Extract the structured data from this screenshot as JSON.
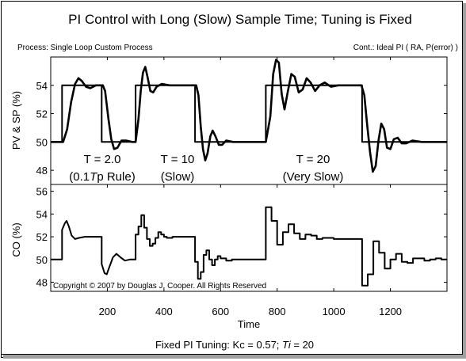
{
  "title": "PI Control with Long (Slow) Sample Time; Tuning is Fixed",
  "process_label": "Process: Single Loop Custom Process",
  "controller_label": "Cont.: Ideal PI ( RA, P(error) )",
  "copyright": "Copyright © 2007 by Douglas J. Cooper.  All Rights Reserved",
  "footer": {
    "prefix": "Fixed PI Tuning:    Kc = 0.57;  ",
    "ti_symbol": "Ti",
    "suffix": " = 20"
  },
  "annotations": [
    {
      "line1": "T = 2.0",
      "line2_pre": "(0.1",
      "line2_ital": "T",
      "line2_post": "p Rule)"
    },
    {
      "line1": "T = 10",
      "line2_pre": "(Slow)",
      "line2_ital": "",
      "line2_post": ""
    },
    {
      "line1": "T = 20",
      "line2_pre": "(Very Slow)",
      "line2_ital": "",
      "line2_post": ""
    }
  ],
  "chart_data": [
    {
      "type": "line",
      "ylabel": "PV & SP (%)",
      "ylim": [
        47,
        56
      ],
      "yticks": [
        48,
        50,
        52,
        54
      ],
      "xlim": [
        0,
        1400
      ],
      "grid": false,
      "series": [
        {
          "points": [
            [
              0,
              50
            ],
            [
              44,
              50
            ],
            [
              58,
              50.9
            ],
            [
              72,
              52.8
            ],
            [
              86,
              54.1
            ],
            [
              98,
              54.5
            ],
            [
              110,
              54.3
            ],
            [
              125,
              53.9
            ],
            [
              140,
              53.8
            ],
            [
              160,
              54
            ],
            [
              184,
              54
            ],
            [
              192,
              53.6
            ],
            [
              204,
              51.6
            ],
            [
              214,
              50.2
            ],
            [
              224,
              49.5
            ],
            [
              236,
              49.6
            ],
            [
              250,
              50.1
            ],
            [
              266,
              50.1
            ],
            [
              288,
              50
            ],
            [
              300,
              50
            ],
            [
              310,
              51.6
            ],
            [
              318,
              53.6
            ],
            [
              326,
              54.9
            ],
            [
              334,
              55.3
            ],
            [
              342,
              54.6
            ],
            [
              352,
              53.6
            ],
            [
              362,
              53.5
            ],
            [
              374,
              53.9
            ],
            [
              392,
              54.1
            ],
            [
              420,
              54
            ],
            [
              470,
              54
            ],
            [
              504,
              54
            ],
            [
              514,
              54
            ],
            [
              522,
              53.3
            ],
            [
              530,
              51.1
            ],
            [
              538,
              49.5
            ],
            [
              546,
              48.7
            ],
            [
              554,
              49.2
            ],
            [
              564,
              50.4
            ],
            [
              572,
              50.8
            ],
            [
              582,
              50.4
            ],
            [
              594,
              49.8
            ],
            [
              606,
              49.8
            ],
            [
              620,
              50.1
            ],
            [
              644,
              50
            ],
            [
              690,
              50
            ],
            [
              760,
              50
            ],
            [
              776,
              51.8
            ],
            [
              786,
              54.8
            ],
            [
              796,
              55.8
            ],
            [
              806,
              55.6
            ],
            [
              816,
              53.4
            ],
            [
              826,
              52.3
            ],
            [
              838,
              53.6
            ],
            [
              850,
              54.8
            ],
            [
              862,
              54.6
            ],
            [
              876,
              53.5
            ],
            [
              890,
              53.7
            ],
            [
              904,
              54.5
            ],
            [
              918,
              54.2
            ],
            [
              934,
              53.6
            ],
            [
              950,
              54
            ],
            [
              968,
              54.2
            ],
            [
              990,
              53.9
            ],
            [
              1016,
              54
            ],
            [
              1098,
              54
            ],
            [
              1108,
              53.3
            ],
            [
              1118,
              51.2
            ],
            [
              1128,
              49.3
            ],
            [
              1138,
              47.9
            ],
            [
              1148,
              48.3
            ],
            [
              1158,
              50.1
            ],
            [
              1168,
              51.3
            ],
            [
              1178,
              50.9
            ],
            [
              1188,
              49.6
            ],
            [
              1200,
              49.5
            ],
            [
              1212,
              50.2
            ],
            [
              1226,
              50.3
            ],
            [
              1240,
              49.9
            ],
            [
              1256,
              49.9
            ],
            [
              1278,
              50.1
            ],
            [
              1310,
              50
            ],
            [
              1400,
              50
            ]
          ]
        },
        {
          "points": [
            [
              0,
              50
            ],
            [
              40,
              50
            ],
            [
              40,
              54
            ],
            [
              180,
              54
            ],
            [
              180,
              50
            ],
            [
              300,
              50
            ],
            [
              300,
              54
            ],
            [
              510,
              54
            ],
            [
              510,
              50
            ],
            [
              760,
              50
            ],
            [
              760,
              54
            ],
            [
              1100,
              54
            ],
            [
              1100,
              50
            ],
            [
              1400,
              50
            ]
          ]
        }
      ]
    },
    {
      "type": "line",
      "ylabel": "CO (%)",
      "ylim": [
        47.2,
        56.6
      ],
      "yticks": [
        48,
        50,
        52,
        54,
        56
      ],
      "xlim": [
        0,
        1400
      ],
      "xlabel": "Time",
      "xticks": [
        200,
        400,
        600,
        800,
        1000,
        1200
      ],
      "grid": false,
      "series": [
        {
          "points": [
            [
              0,
              50
            ],
            [
              40,
              50
            ],
            [
              40,
              52.6
            ],
            [
              50,
              53.2
            ],
            [
              56,
              53.4
            ],
            [
              64,
              52.9
            ],
            [
              74,
              52.1
            ],
            [
              86,
              51.8
            ],
            [
              100,
              51.9
            ],
            [
              120,
              52
            ],
            [
              180,
              52
            ],
            [
              180,
              49.6
            ],
            [
              190,
              48.8
            ],
            [
              198,
              48.7
            ],
            [
              208,
              49.4
            ],
            [
              220,
              50.2
            ],
            [
              232,
              50.5
            ],
            [
              246,
              50.2
            ],
            [
              262,
              49.9
            ],
            [
              280,
              50
            ],
            [
              300,
              50
            ],
            [
              300,
              52.2
            ],
            [
              310,
              52.2
            ],
            [
              310,
              52.9
            ],
            [
              320,
              52.9
            ],
            [
              320,
              53.9
            ],
            [
              330,
              53.9
            ],
            [
              330,
              52.8
            ],
            [
              340,
              52.8
            ],
            [
              340,
              51.8
            ],
            [
              350,
              51.8
            ],
            [
              350,
              51.2
            ],
            [
              360,
              51.2
            ],
            [
              360,
              51.4
            ],
            [
              370,
              51.4
            ],
            [
              370,
              51.9
            ],
            [
              380,
              51.9
            ],
            [
              380,
              52.4
            ],
            [
              390,
              52.4
            ],
            [
              390,
              52.2
            ],
            [
              400,
              52.2
            ],
            [
              400,
              52
            ],
            [
              410,
              52
            ],
            [
              410,
              51.9
            ],
            [
              430,
              51.9
            ],
            [
              430,
              52
            ],
            [
              510,
              52
            ],
            [
              510,
              49.8
            ],
            [
              520,
              49.8
            ],
            [
              520,
              48.3
            ],
            [
              530,
              48.3
            ],
            [
              530,
              48.9
            ],
            [
              540,
              48.9
            ],
            [
              540,
              50.4
            ],
            [
              550,
              50.4
            ],
            [
              550,
              50.8
            ],
            [
              560,
              50.8
            ],
            [
              560,
              50
            ],
            [
              570,
              50
            ],
            [
              570,
              49.5
            ],
            [
              580,
              49.5
            ],
            [
              580,
              50
            ],
            [
              590,
              50
            ],
            [
              590,
              50.3
            ],
            [
              600,
              50.3
            ],
            [
              600,
              50.1
            ],
            [
              620,
              50.1
            ],
            [
              620,
              49.9
            ],
            [
              640,
              49.9
            ],
            [
              640,
              50
            ],
            [
              760,
              50
            ],
            [
              760,
              54.6
            ],
            [
              780,
              54.6
            ],
            [
              780,
              53.4
            ],
            [
              800,
              53.4
            ],
            [
              800,
              51.3
            ],
            [
              820,
              51.3
            ],
            [
              820,
              52.4
            ],
            [
              840,
              52.4
            ],
            [
              840,
              53.1
            ],
            [
              860,
              53.1
            ],
            [
              860,
              52.3
            ],
            [
              880,
              52.3
            ],
            [
              880,
              51.8
            ],
            [
              900,
              51.8
            ],
            [
              900,
              52.2
            ],
            [
              920,
              52.2
            ],
            [
              920,
              52.1
            ],
            [
              940,
              52.1
            ],
            [
              940,
              51.8
            ],
            [
              960,
              51.8
            ],
            [
              960,
              51.9
            ],
            [
              1000,
              51.9
            ],
            [
              1000,
              51.8
            ],
            [
              1100,
              51.8
            ],
            [
              1100,
              47.7
            ],
            [
              1120,
              47.7
            ],
            [
              1120,
              48.7
            ],
            [
              1140,
              48.7
            ],
            [
              1140,
              51.6
            ],
            [
              1160,
              51.6
            ],
            [
              1160,
              50.6
            ],
            [
              1180,
              50.6
            ],
            [
              1180,
              49.2
            ],
            [
              1200,
              49.2
            ],
            [
              1200,
              50
            ],
            [
              1220,
              50
            ],
            [
              1220,
              50.5
            ],
            [
              1240,
              50.5
            ],
            [
              1240,
              49.8
            ],
            [
              1260,
              49.8
            ],
            [
              1260,
              49.7
            ],
            [
              1280,
              49.7
            ],
            [
              1280,
              50.1
            ],
            [
              1300,
              50.1
            ],
            [
              1300,
              50.1
            ],
            [
              1320,
              50.1
            ],
            [
              1320,
              49.9
            ],
            [
              1340,
              49.9
            ],
            [
              1340,
              50
            ],
            [
              1360,
              50
            ],
            [
              1360,
              50.1
            ],
            [
              1380,
              50.1
            ],
            [
              1380,
              50
            ],
            [
              1400,
              50
            ]
          ]
        }
      ]
    }
  ]
}
